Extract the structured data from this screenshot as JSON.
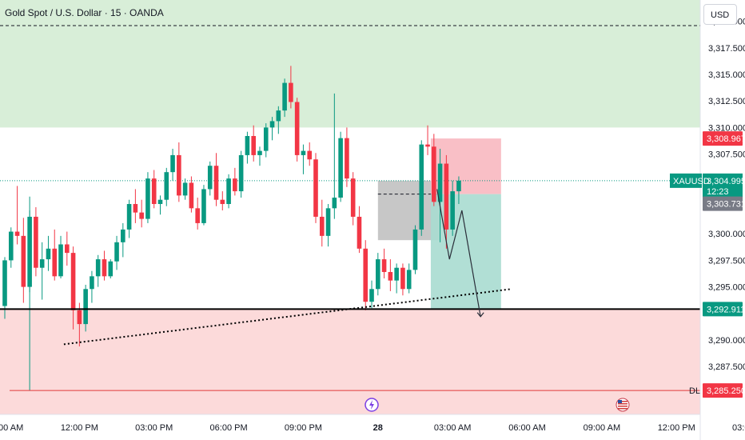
{
  "header": {
    "symbol_title": "Gold Spot / U.S. Dollar · 15 · OANDA"
  },
  "currency_button": "USD",
  "colors": {
    "up": "#089981",
    "down": "#f23645",
    "supply_zone": "#d8eed8",
    "demand_zone": "#fcdada",
    "stop_zone": "#f8b8c0",
    "target_zone": "#a8dcd0",
    "entry_box": "#b4b4b4"
  },
  "labels": {
    "xauusd": "XAUUSD",
    "last_price": "3,304.995",
    "countdown": "12:23",
    "entry_price": "3,303.731",
    "stop_price": "3,308.967",
    "support_price": "3,292.911",
    "dl_price": "3,285.250",
    "dl_tag": "DL"
  },
  "chart_data": {
    "type": "candlestick",
    "title": "Gold Spot / U.S. Dollar · 15 · OANDA",
    "ylim": [
      3283,
      3322
    ],
    "y_ticks": [
      "3,320.000",
      "3,317.500",
      "3,315.000",
      "3,312.500",
      "3,310.000",
      "3,307.500",
      "3,300.000",
      "3,297.500",
      "3,295.000",
      "3,290.000",
      "3,287.500"
    ],
    "y_tick_values": [
      3320.0,
      3317.5,
      3315.0,
      3312.5,
      3310.0,
      3307.5,
      3300.0,
      3297.5,
      3295.0,
      3290.0,
      3287.5
    ],
    "x_ticks": [
      "09:00 AM",
      "12:00 PM",
      "03:00 PM",
      "06:00 PM",
      "09:00 PM",
      "28",
      "03:00 AM",
      "06:00 AM",
      "09:00 AM",
      "12:00 PM",
      "03:00 PM"
    ],
    "x_tick_index": [
      0,
      12,
      24,
      36,
      48,
      60,
      72,
      84,
      96,
      108,
      120
    ],
    "candles": [
      [
        3293.2,
        3297.8,
        3292.0,
        3297.5
      ],
      [
        3297.5,
        3300.6,
        3296.8,
        3300.2
      ],
      [
        3300.2,
        3304.5,
        3299.0,
        3299.8
      ],
      [
        3299.8,
        3301.5,
        3293.5,
        3295.0
      ],
      [
        3295.0,
        3302.2,
        3294.5,
        3301.6
      ],
      [
        3301.6,
        3302.5,
        3296.0,
        3296.8
      ],
      [
        3296.8,
        3299.2,
        3293.8,
        3297.6
      ],
      [
        3297.6,
        3299.8,
        3296.5,
        3298.6
      ],
      [
        3298.6,
        3300.4,
        3295.6,
        3296.0
      ],
      [
        3296.0,
        3299.8,
        3295.8,
        3299.0
      ],
      [
        3299.0,
        3300.2,
        3297.0,
        3298.2
      ],
      [
        3298.2,
        3298.8,
        3291.0,
        3292.8
      ],
      [
        3292.8,
        3293.5,
        3289.4,
        3291.5
      ],
      [
        3291.5,
        3295.2,
        3290.8,
        3294.8
      ],
      [
        3294.8,
        3296.5,
        3293.5,
        3296.0
      ],
      [
        3296.0,
        3298.0,
        3295.0,
        3297.6
      ],
      [
        3297.6,
        3298.4,
        3295.6,
        3296.0
      ],
      [
        3296.0,
        3297.6,
        3295.8,
        3297.4
      ],
      [
        3297.4,
        3299.8,
        3296.6,
        3299.2
      ],
      [
        3299.2,
        3301.0,
        3297.8,
        3300.4
      ],
      [
        3300.4,
        3303.2,
        3299.6,
        3302.8
      ],
      [
        3302.8,
        3304.2,
        3301.0,
        3302.0
      ],
      [
        3302.0,
        3303.2,
        3300.6,
        3301.4
      ],
      [
        3301.4,
        3305.8,
        3301.0,
        3305.2
      ],
      [
        3305.2,
        3306.0,
        3302.4,
        3302.8
      ],
      [
        3302.8,
        3303.6,
        3301.8,
        3303.2
      ],
      [
        3303.2,
        3306.2,
        3302.6,
        3305.8
      ],
      [
        3305.8,
        3308.0,
        3305.0,
        3307.4
      ],
      [
        3307.4,
        3308.6,
        3303.0,
        3303.6
      ],
      [
        3303.6,
        3305.2,
        3303.2,
        3304.8
      ],
      [
        3304.8,
        3305.4,
        3302.0,
        3302.4
      ],
      [
        3302.4,
        3303.4,
        3300.4,
        3301.0
      ],
      [
        3301.0,
        3304.6,
        3300.8,
        3304.2
      ],
      [
        3304.2,
        3306.8,
        3303.6,
        3306.4
      ],
      [
        3306.4,
        3307.6,
        3302.6,
        3303.2
      ],
      [
        3303.2,
        3304.0,
        3302.2,
        3302.8
      ],
      [
        3302.8,
        3305.6,
        3302.4,
        3305.2
      ],
      [
        3305.2,
        3306.2,
        3303.6,
        3304.0
      ],
      [
        3304.0,
        3307.8,
        3303.4,
        3307.4
      ],
      [
        3307.4,
        3309.6,
        3306.6,
        3309.2
      ],
      [
        3309.2,
        3310.2,
        3306.8,
        3307.4
      ],
      [
        3307.4,
        3308.2,
        3306.4,
        3307.8
      ],
      [
        3307.8,
        3310.4,
        3307.2,
        3310.0
      ],
      [
        3310.0,
        3311.0,
        3308.8,
        3310.6
      ],
      [
        3310.6,
        3312.0,
        3309.4,
        3311.6
      ],
      [
        3311.6,
        3314.6,
        3311.0,
        3314.2
      ],
      [
        3314.2,
        3315.8,
        3311.8,
        3312.4
      ],
      [
        3312.4,
        3312.8,
        3306.8,
        3307.4
      ],
      [
        3307.4,
        3308.4,
        3305.6,
        3307.8
      ],
      [
        3307.8,
        3308.6,
        3306.4,
        3307.0
      ],
      [
        3307.0,
        3307.6,
        3301.0,
        3301.6
      ],
      [
        3301.6,
        3303.2,
        3298.8,
        3299.8
      ],
      [
        3299.8,
        3302.8,
        3298.8,
        3302.4
      ],
      [
        3302.4,
        3313.2,
        3301.4,
        3303.4
      ],
      [
        3303.4,
        3309.6,
        3303.0,
        3309.0
      ],
      [
        3309.0,
        3310.0,
        3304.4,
        3305.2
      ],
      [
        3305.2,
        3305.8,
        3300.8,
        3301.6
      ],
      [
        3301.6,
        3302.6,
        3298.2,
        3298.6
      ],
      [
        3298.6,
        3299.4,
        3292.8,
        3293.6
      ],
      [
        3293.6,
        3295.6,
        3293.0,
        3294.8
      ],
      [
        3294.8,
        3298.2,
        3294.2,
        3297.6
      ],
      [
        3297.6,
        3298.6,
        3295.8,
        3296.4
      ],
      [
        3296.4,
        3297.6,
        3294.6,
        3295.6
      ],
      [
        3295.6,
        3297.2,
        3294.4,
        3296.8
      ],
      [
        3296.8,
        3297.2,
        3294.2,
        3294.8
      ],
      [
        3294.8,
        3297.2,
        3294.4,
        3296.6
      ],
      [
        3296.6,
        3300.8,
        3296.2,
        3300.4
      ],
      [
        3300.4,
        3308.8,
        3299.8,
        3308.4
      ],
      [
        3308.4,
        3310.2,
        3307.4,
        3308.2
      ],
      [
        3308.2,
        3309.4,
        3302.6,
        3303.0
      ],
      [
        3303.0,
        3308.0,
        3299.2,
        3306.6
      ],
      [
        3306.6,
        3307.4,
        3298.6,
        3300.4
      ],
      [
        3300.4,
        3305.0,
        3299.8,
        3304.0
      ],
      [
        3304.0,
        3305.4,
        3302.8,
        3304.995
      ]
    ],
    "series": [],
    "levels": [
      {
        "price": 3308.967,
        "label": "3,308.967"
      },
      {
        "price": 3304.995,
        "label": "3,304.995"
      },
      {
        "price": 3303.731,
        "label": "3,303.731"
      },
      {
        "price": 3292.911,
        "label": "3,292.911"
      },
      {
        "price": 3285.25,
        "label": "3,285.250"
      }
    ],
    "zones": [
      {
        "from": 3310.0,
        "to": 3322.0
      },
      {
        "from": 3283.0,
        "to": 3292.911
      }
    ],
    "grid": false
  }
}
